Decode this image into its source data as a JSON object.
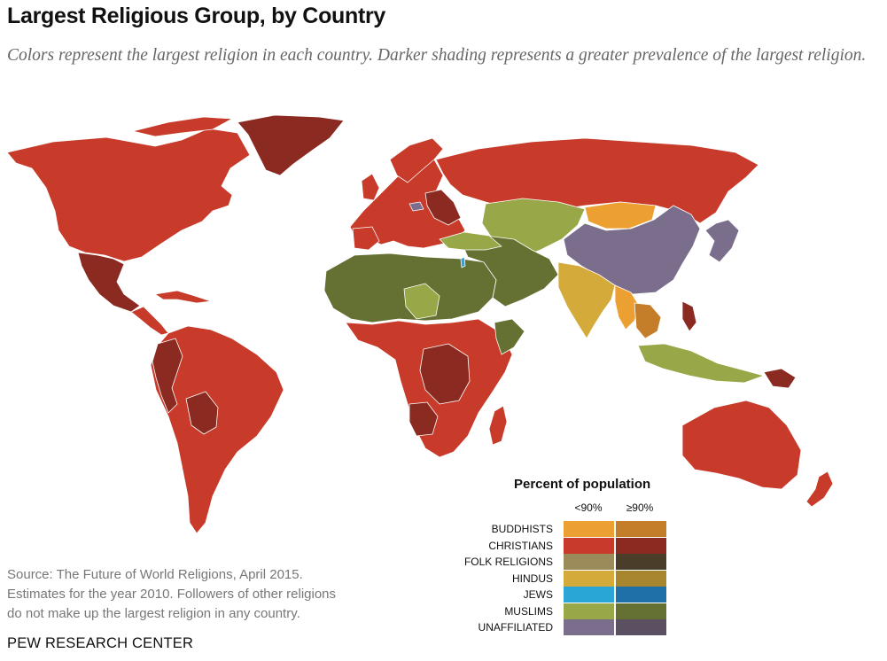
{
  "title": "Largest Religious Group, by Country",
  "subtitle": "Colors represent the largest religion in each country. Darker shading represents a greater prevalence of the largest religion.",
  "source": {
    "line1": "Source: The Future of World Religions, April 2015.",
    "line2": "Estimates for the year 2010. Followers of other religions",
    "line3": "do not make up the largest religion in any country."
  },
  "brand": "PEW RESEARCH CENTER",
  "legend": {
    "title": "Percent of population",
    "col_low": "<90%",
    "col_high": "≥90%",
    "rows": [
      {
        "label": "BUDDHISTS",
        "low": "#EDA032",
        "high": "#C47E2A"
      },
      {
        "label": "CHRISTIANS",
        "low": "#C83A2A",
        "high": "#8B2A20"
      },
      {
        "label": "FOLK RELIGIONS",
        "low": "#9C8B5A",
        "high": "#4A3E2A"
      },
      {
        "label": "HINDUS",
        "low": "#D4AA3A",
        "high": "#A8862E"
      },
      {
        "label": "JEWS",
        "low": "#2AA6D6",
        "high": "#1F6FA8"
      },
      {
        "label": "MUSLIMS",
        "low": "#98A848",
        "high": "#657033"
      },
      {
        "label": "UNAFFILIATED",
        "low": "#7A6E8C",
        "high": "#5A5062"
      }
    ]
  },
  "colors": {
    "christian": "#C83A2A",
    "christian_dark": "#8B2A20",
    "muslim": "#98A848",
    "muslim_dark": "#657033",
    "unaffiliated": "#7A6E8C",
    "buddhist": "#EDA032",
    "hindu": "#D4AA3A",
    "jew": "#2AA6D6",
    "border": "#ffffff"
  }
}
